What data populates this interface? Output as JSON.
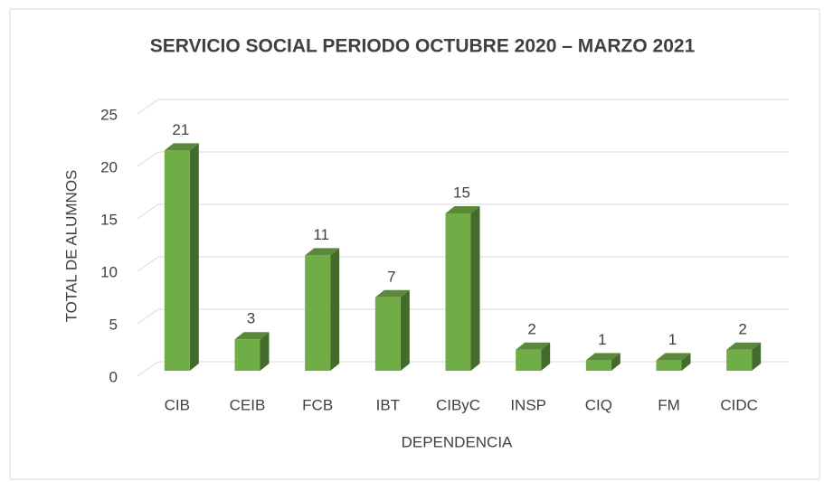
{
  "chart_data": {
    "type": "bar3d",
    "title": "SERVICIO SOCIAL PERIODO OCTUBRE 2020 – MARZO 2021",
    "x_label": "DEPENDENCIA",
    "y_label": "TOTAL DE ALUMNOS",
    "categories": [
      "CIB",
      "CEIB",
      "FCB",
      "IBT",
      "CIByC",
      "INSP",
      "CIQ",
      "FM",
      "CIDC"
    ],
    "values": [
      21,
      3,
      11,
      7,
      15,
      2,
      1,
      1,
      2
    ],
    "color": "#70ad47",
    "ylim": [
      0,
      25
    ],
    "yticks": [
      0,
      5,
      10,
      15,
      20,
      25
    ],
    "grid": true
  }
}
